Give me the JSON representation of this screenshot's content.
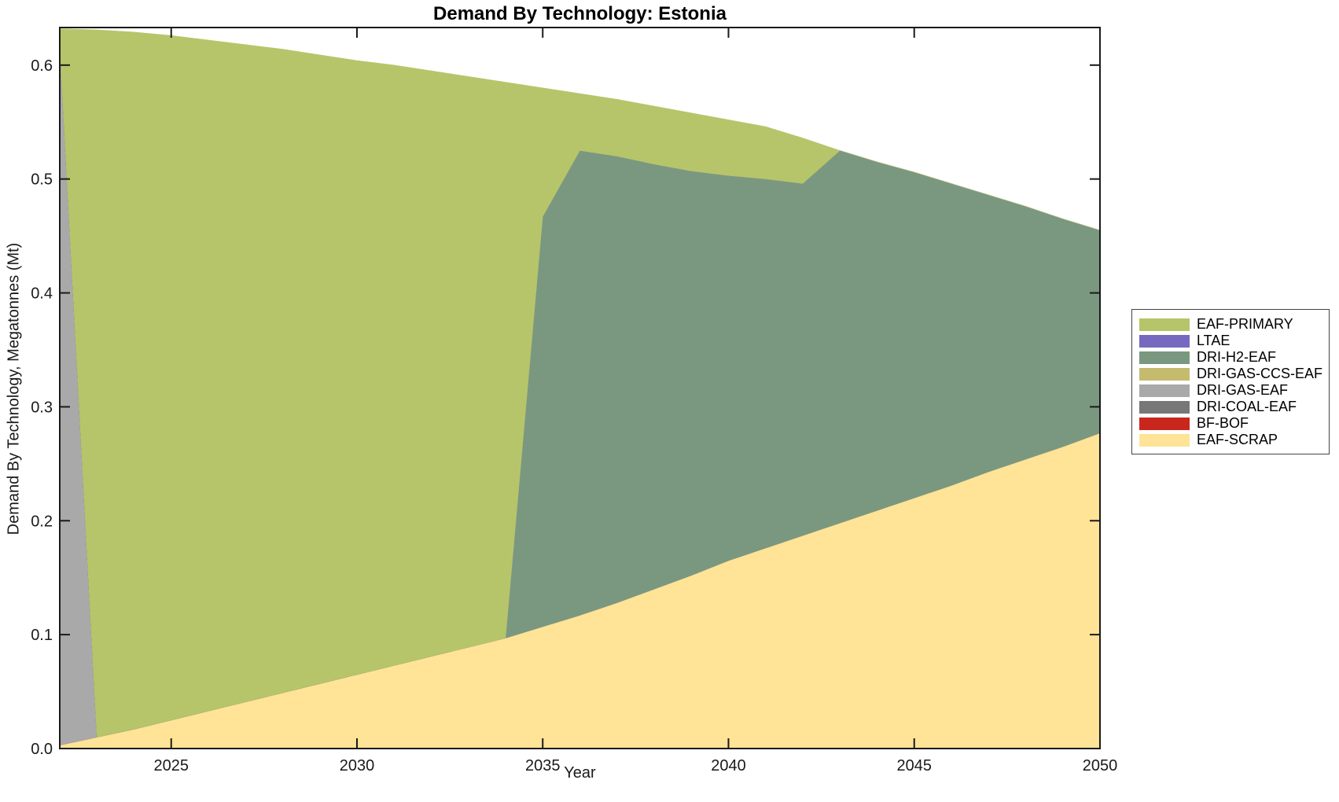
{
  "chart_data": {
    "type": "area",
    "stacked": true,
    "title": "Demand By Technology: Estonia",
    "xlabel": "Year",
    "ylabel": "Demand By Technology, Megatonnes (Mt)",
    "xlim": [
      2022,
      2050
    ],
    "ylim": [
      0,
      0.633
    ],
    "grid": false,
    "legend_position": "right-outside",
    "x_tick_values": [
      2025,
      2030,
      2035,
      2040,
      2045,
      2050
    ],
    "x_tick_labels": [
      "2025",
      "2030",
      "2035",
      "2040",
      "2045",
      "2050"
    ],
    "y_tick_values": [
      0.0,
      0.1,
      0.2,
      0.3,
      0.4,
      0.5,
      0.6
    ],
    "y_tick_labels": [
      "0.0",
      "0.1",
      "0.2",
      "0.3",
      "0.4",
      "0.5",
      "0.6"
    ],
    "x": [
      2022,
      2023,
      2024,
      2025,
      2026,
      2027,
      2028,
      2029,
      2030,
      2031,
      2032,
      2033,
      2034,
      2035,
      2036,
      2037,
      2038,
      2039,
      2040,
      2041,
      2042,
      2043,
      2044,
      2045,
      2046,
      2047,
      2048,
      2049,
      2050
    ],
    "series": [
      {
        "name": "EAF-SCRAP",
        "color": "#ffe396",
        "values": [
          0.003,
          0.01,
          0.017,
          0.025,
          0.033,
          0.041,
          0.049,
          0.057,
          0.065,
          0.073,
          0.081,
          0.089,
          0.097,
          0.107,
          0.117,
          0.128,
          0.14,
          0.152,
          0.165,
          0.176,
          0.187,
          0.198,
          0.209,
          0.22,
          0.231,
          0.243,
          0.254,
          0.265,
          0.277
        ]
      },
      {
        "name": "BF-BOF",
        "color": "#c9271d",
        "values": [
          0,
          0,
          0,
          0,
          0,
          0,
          0,
          0,
          0,
          0,
          0,
          0,
          0,
          0,
          0,
          0,
          0,
          0,
          0,
          0,
          0,
          0,
          0,
          0,
          0,
          0,
          0,
          0,
          0
        ]
      },
      {
        "name": "DRI-COAL-EAF",
        "color": "#777777",
        "values": [
          0,
          0,
          0,
          0,
          0,
          0,
          0,
          0,
          0,
          0,
          0,
          0,
          0,
          0,
          0,
          0,
          0,
          0,
          0,
          0,
          0,
          0,
          0,
          0,
          0,
          0,
          0,
          0,
          0
        ]
      },
      {
        "name": "DRI-GAS-EAF",
        "color": "#a9a9a9",
        "values": [
          0.614,
          0,
          0,
          0,
          0,
          0,
          0,
          0,
          0,
          0,
          0,
          0,
          0,
          0,
          0,
          0,
          0,
          0,
          0,
          0,
          0,
          0,
          0,
          0,
          0,
          0,
          0,
          0,
          0
        ]
      },
      {
        "name": "DRI-GAS-CCS-EAF",
        "color": "#c5bb6e",
        "values": [
          0,
          0,
          0,
          0,
          0,
          0,
          0,
          0,
          0,
          0,
          0,
          0,
          0,
          0,
          0,
          0,
          0,
          0,
          0,
          0,
          0,
          0,
          0,
          0,
          0,
          0,
          0,
          0,
          0
        ]
      },
      {
        "name": "DRI-H2-EAF",
        "color": "#7a9880",
        "values": [
          0,
          0,
          0,
          0,
          0,
          0,
          0,
          0,
          0,
          0,
          0,
          0,
          0,
          0.36,
          0.408,
          0.392,
          0.373,
          0.355,
          0.338,
          0.324,
          0.309,
          0.327,
          0.306,
          0.286,
          0.265,
          0.243,
          0.222,
          0.2,
          0.178
        ]
      },
      {
        "name": "LTAE",
        "color": "#7669bf",
        "values": [
          0,
          0,
          0,
          0,
          0,
          0,
          0,
          0,
          0,
          0,
          0,
          0,
          0,
          0,
          0,
          0,
          0,
          0,
          0,
          0,
          0,
          0,
          0,
          0,
          0,
          0,
          0,
          0,
          0
        ]
      },
      {
        "name": "EAF-PRIMARY",
        "color": "#b6c569",
        "values": [
          0.015,
          0.621,
          0.612,
          0.601,
          0.589,
          0.577,
          0.565,
          0.552,
          0.539,
          0.527,
          0.514,
          0.501,
          0.488,
          0.113,
          0.05,
          0.05,
          0.051,
          0.051,
          0.049,
          0.046,
          0.04,
          0,
          0,
          0,
          0,
          0,
          0,
          0,
          0
        ]
      }
    ],
    "legend_order": [
      "EAF-PRIMARY",
      "LTAE",
      "DRI-H2-EAF",
      "DRI-GAS-CCS-EAF",
      "DRI-GAS-EAF",
      "DRI-COAL-EAF",
      "BF-BOF",
      "EAF-SCRAP"
    ]
  }
}
